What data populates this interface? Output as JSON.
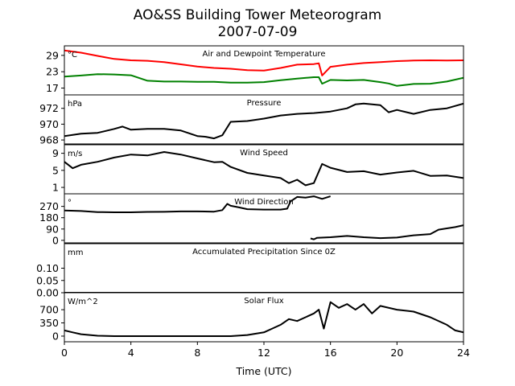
{
  "title_line1": "AO&SS Building Tower Meteorogram",
  "title_line2": "2007-07-09",
  "chart_data": {
    "type": "line",
    "xlabel": "Time (UTC)",
    "x_ticks": [
      0,
      4,
      8,
      12,
      16,
      20,
      24
    ],
    "xlim": [
      0,
      24
    ],
    "panels": [
      {
        "title": "Air and Dewpoint Temperature",
        "unit": "°C",
        "ylim": [
          14.5,
          32.5
        ],
        "yticks": [
          17,
          23,
          29
        ],
        "series": [
          {
            "color": "#ff0000",
            "x": [
              0,
              0.5,
              1,
              1.5,
              2,
              3,
              4,
              5,
              6,
              7,
              8,
              9,
              10,
              11,
              12,
              13,
              14,
              15,
              15.3,
              15.5,
              16,
              17,
              18,
              19,
              20,
              21,
              22,
              23,
              24
            ],
            "y": [
              30.8,
              30.4,
              30.0,
              29.4,
              28.8,
              27.7,
              27.2,
              27.0,
              26.5,
              25.7,
              24.9,
              24.4,
              24.1,
              23.6,
              23.4,
              24.4,
              25.6,
              25.8,
              26.1,
              21.6,
              24.8,
              25.6,
              26.2,
              26.5,
              26.9,
              27.1,
              27.2,
              27.1,
              27.2
            ]
          },
          {
            "color": "#008000",
            "x": [
              0,
              1,
              2,
              3,
              4,
              5,
              6,
              7,
              8,
              9,
              10,
              11,
              12,
              13,
              14,
              15,
              15.3,
              15.5,
              16,
              17,
              18,
              19,
              19.5,
              20,
              21,
              22,
              23,
              24
            ],
            "y": [
              21.2,
              21.6,
              22.1,
              22.0,
              21.7,
              19.7,
              19.4,
              19.4,
              19.3,
              19.3,
              19.0,
              19.0,
              19.2,
              19.9,
              20.5,
              21.0,
              21.0,
              18.6,
              20.0,
              19.8,
              20.0,
              19.2,
              18.7,
              17.8,
              18.5,
              18.6,
              19.4,
              20.8
            ]
          }
        ]
      },
      {
        "title": "Pressure",
        "unit": "hPa",
        "ylim": [
          967.5,
          973.7
        ],
        "yticks": [
          968,
          970,
          972
        ],
        "series": [
          {
            "color": "#000000",
            "x": [
              0,
              1,
              2,
              3,
              3.5,
              4,
              5,
              6,
              7,
              8,
              8.5,
              9,
              9.5,
              10,
              11,
              12,
              13,
              14,
              15,
              16,
              17,
              17.5,
              18,
              19,
              19.5,
              20,
              21,
              22,
              23,
              24
            ],
            "y": [
              968.5,
              968.8,
              968.9,
              969.4,
              969.7,
              969.3,
              969.4,
              969.4,
              969.2,
              968.5,
              968.4,
              968.2,
              968.6,
              970.3,
              970.4,
              970.7,
              971.1,
              971.3,
              971.4,
              971.6,
              972.0,
              972.5,
              972.6,
              972.4,
              971.5,
              971.8,
              971.3,
              971.8,
              972.0,
              972.6
            ]
          }
        ]
      },
      {
        "title": "Wind Speed",
        "unit": "m/s",
        "ylim": [
          -0.5,
          11
        ],
        "yticks": [
          1,
          5,
          9
        ],
        "series": [
          {
            "color": "#000000",
            "x": [
              0,
              0.5,
              1,
              2,
              3,
              4,
              5,
              6,
              7,
              8,
              9,
              9.5,
              10,
              11,
              12,
              13,
              13.5,
              14,
              14.5,
              15,
              15.5,
              16,
              17,
              18,
              19,
              20,
              21,
              22,
              23,
              24
            ],
            "y": [
              7.0,
              5.5,
              6.3,
              7.0,
              8.0,
              8.7,
              8.5,
              9.3,
              8.7,
              7.8,
              6.9,
              7.0,
              5.8,
              4.4,
              3.8,
              3.2,
              2.0,
              2.8,
              1.5,
              2.0,
              6.5,
              5.6,
              4.6,
              4.8,
              4.0,
              4.5,
              4.9,
              3.7,
              3.8,
              3.2
            ]
          }
        ]
      },
      {
        "title": "Wind Direction",
        "unit": "°",
        "ylim": [
          -20,
          370
        ],
        "yticks": [
          0,
          90,
          180,
          270
        ],
        "series": [
          {
            "color": "#000000",
            "x": [
              0,
              1,
              2,
              3,
              4,
              5,
              6,
              7,
              8,
              9,
              9.5,
              9.8,
              10,
              10.5,
              11,
              12,
              13,
              13.4,
              13.6,
              14,
              14.5,
              15,
              15.5,
              16
            ],
            "y": [
              237,
              233,
              225,
              223,
              223,
              226,
              227,
              230,
              230,
              228,
              240,
              290,
              275,
              262,
              248,
              245,
              245,
              252,
              310,
              345,
              340,
              350,
              330,
              350
            ]
          },
          {
            "color": "#000000",
            "x": [
              14.8,
              15,
              15.2,
              16,
              17,
              18,
              19,
              20,
              21,
              22,
              22.5,
              23,
              23.5,
              24
            ],
            "y": [
              15,
              8,
              20,
              25,
              35,
              25,
              18,
              22,
              40,
              50,
              85,
              95,
              105,
              120
            ]
          }
        ]
      },
      {
        "title": "Accumulated Precipitation Since 0Z",
        "unit": "mm",
        "ylim": [
          0,
          0.2
        ],
        "yticks": [
          0.0,
          0.05,
          0.1
        ],
        "ytick_labels": [
          "0.00",
          "0.05",
          "0.10"
        ],
        "series": [
          {
            "color": "#000000",
            "x": [
              0,
              24
            ],
            "y": [
              0,
              0
            ]
          }
        ]
      },
      {
        "title": "Solar Flux",
        "unit": "W/m^2",
        "ylim": [
          -150,
          1150
        ],
        "yticks": [
          0,
          350,
          700
        ],
        "series": [
          {
            "color": "#000000",
            "x": [
              0,
              0.5,
              1,
              2,
              3,
              4,
              6,
              8,
              10,
              11,
              12,
              12.5,
              13,
              13.5,
              14,
              14.5,
              15,
              15.3,
              15.6,
              16,
              16.5,
              17,
              17.5,
              18,
              18.5,
              19,
              20,
              21,
              22,
              23,
              23.5,
              24
            ],
            "y": [
              150,
              100,
              50,
              10,
              0,
              0,
              0,
              0,
              0,
              30,
              100,
              200,
              300,
              450,
              400,
              500,
              600,
              700,
              200,
              900,
              750,
              850,
              700,
              850,
              600,
              800,
              700,
              650,
              500,
              300,
              150,
              100
            ]
          }
        ]
      }
    ]
  }
}
